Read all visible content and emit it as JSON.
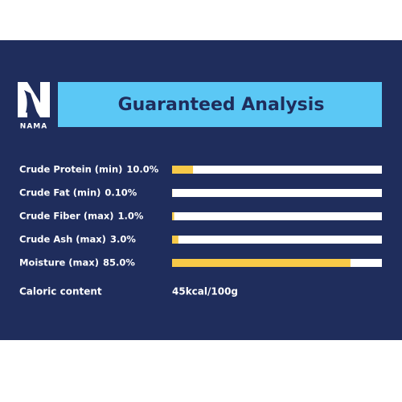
{
  "logo": "NAMA",
  "chart_data": {
    "type": "hbar",
    "title": "Guaranteed Analysis",
    "categories": [
      "Crude Protein (min)",
      "Crude Fat (min)",
      "Crude Fiber (max)",
      "Crude Ash (max)",
      "Moisture (max)"
    ],
    "values": [
      10,
      0.1,
      1,
      3,
      85
    ],
    "value_labels": [
      "10.0%",
      "0.10%",
      "1.0%",
      "3.0%",
      "85.0%"
    ],
    "xlim": [
      0,
      100
    ],
    "color": "#f7c948",
    "track_color": "#ffffff",
    "caloric_label": "Caloric content",
    "caloric_value": "45kcal/100g"
  }
}
